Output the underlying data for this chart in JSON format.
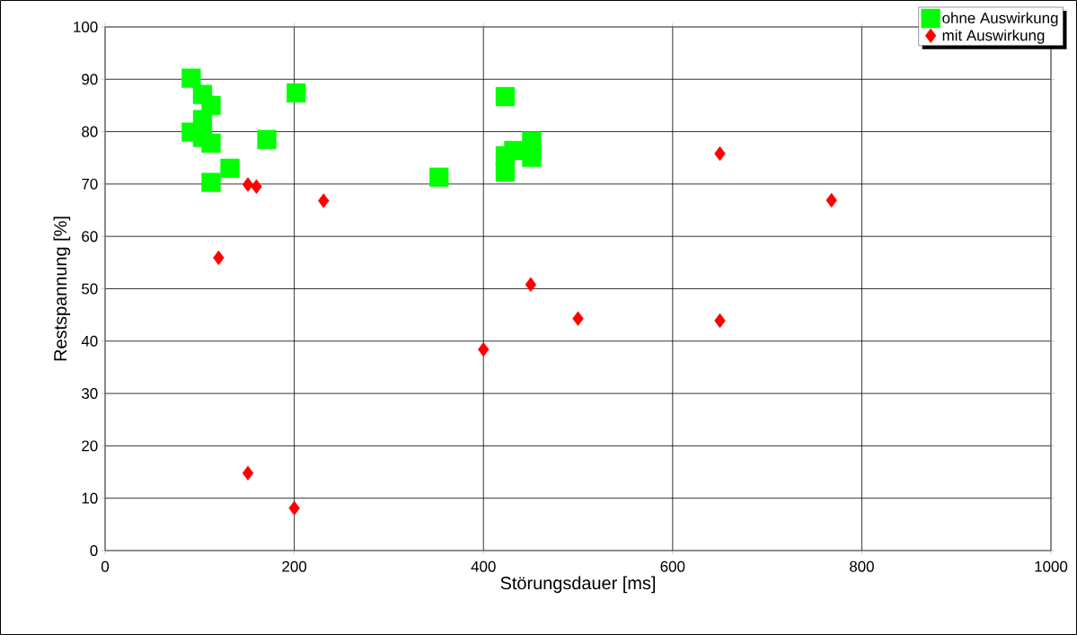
{
  "chart_data": {
    "type": "scatter",
    "xlabel": "Störungsdauer [ms]",
    "ylabel": "Restspannung [%]",
    "xlim": [
      0,
      1000
    ],
    "ylim": [
      0,
      100
    ],
    "xticks": [
      0,
      200,
      400,
      600,
      800,
      1000
    ],
    "yticks": [
      0,
      10,
      20,
      30,
      40,
      50,
      60,
      70,
      80,
      90,
      100
    ],
    "grid": true,
    "legend": "top right",
    "series": [
      {
        "name": "ohne Auswirkung",
        "color": "#00ff00",
        "marker": "square",
        "x": [
          91,
          103,
          112,
          91,
          112,
          171,
          202,
          132,
          112,
          423,
          353,
          423,
          432,
          451,
          451,
          423,
          103,
          103
        ],
        "values": [
          90.2,
          87.1,
          85.0,
          79.9,
          77.8,
          78.5,
          87.4,
          73.0,
          70.3,
          86.7,
          71.3,
          72.3,
          76.4,
          78.2,
          75.1,
          75.4,
          82.3,
          78.9
        ]
      },
      {
        "name": "mit Auswirkung",
        "color": "#ff0000",
        "marker": "diamond",
        "x": [
          151,
          160,
          231,
          120,
          151,
          200,
          400,
          450,
          500,
          650,
          650,
          768
        ],
        "values": [
          69.9,
          69.5,
          66.8,
          55.9,
          14.8,
          8.1,
          38.4,
          50.8,
          44.3,
          75.8,
          43.9,
          66.9
        ]
      }
    ]
  }
}
